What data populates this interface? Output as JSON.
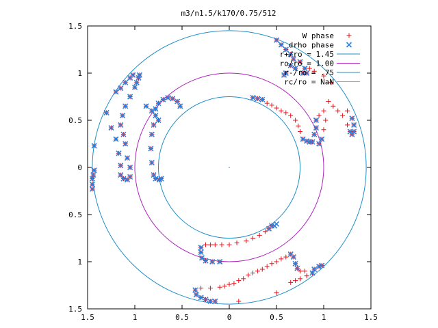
{
  "chart_data": {
    "type": "scatter",
    "title": "m3/n1.5/k170/0.75/512",
    "xlim": [
      -1.5,
      1.5
    ],
    "ylim": [
      -1.5,
      1.5
    ],
    "x_ticks": [
      {
        "value": -1.5,
        "label": "1.5"
      },
      {
        "value": -1,
        "label": "1"
      },
      {
        "value": -0.5,
        "label": "0.5"
      },
      {
        "value": 0,
        "label": "0"
      },
      {
        "value": 0.5,
        "label": "0.5"
      },
      {
        "value": 1,
        "label": "1"
      },
      {
        "value": 1.5,
        "label": "1.5"
      }
    ],
    "y_ticks": [
      {
        "value": 1.5,
        "label": "1.5"
      },
      {
        "value": 1,
        "label": "1"
      },
      {
        "value": 0.5,
        "label": "0.5"
      },
      {
        "value": 0,
        "label": "0"
      },
      {
        "value": -0.5,
        "label": "0.5"
      },
      {
        "value": -1,
        "label": "1"
      },
      {
        "value": -1.5,
        "label": "1.5"
      }
    ],
    "legend_position": "top-right",
    "grid": false,
    "circles": [
      {
        "name": "r+/ro = 1.45",
        "radius": 1.45,
        "color": "#1f8fc7"
      },
      {
        "name": "ro/ro = 1.00",
        "radius": 1.0,
        "color": "#b020c0"
      },
      {
        "name": "r-/ro = .75",
        "radius": 0.75,
        "color": "#1f8fc7"
      },
      {
        "name": "rc/ro = NaN",
        "radius": null,
        "color": "#40c8d8"
      }
    ],
    "series": [
      {
        "name": "W phase",
        "marker": "plus",
        "color": "#e8101a",
        "points": [
          [
            -1.45,
            -0.23
          ],
          [
            -1.45,
            -0.18
          ],
          [
            -1.45,
            -0.12
          ],
          [
            -1.44,
            -0.08
          ],
          [
            -1.43,
            -0.03
          ],
          [
            -1.43,
            0.23
          ],
          [
            -1.3,
            0.58
          ],
          [
            -1.2,
            0.8
          ],
          [
            -1.15,
            0.84
          ],
          [
            -1.1,
            0.9
          ],
          [
            -1.05,
            0.95
          ],
          [
            -1.02,
            0.98
          ],
          [
            -1.25,
            0.42
          ],
          [
            -1.2,
            0.3
          ],
          [
            -1.17,
            0.15
          ],
          [
            -1.15,
            0.02
          ],
          [
            -1.15,
            -0.08
          ],
          [
            -1.12,
            -0.12
          ],
          [
            -1.08,
            -0.13
          ],
          [
            -1.05,
            -0.1
          ],
          [
            -1.05,
            0.0
          ],
          [
            -1.08,
            0.1
          ],
          [
            -1.1,
            0.25
          ],
          [
            -1.12,
            0.35
          ],
          [
            -1.15,
            0.45
          ],
          [
            -1.13,
            0.55
          ],
          [
            -1.1,
            0.65
          ],
          [
            -1.05,
            0.75
          ],
          [
            -1.0,
            0.85
          ],
          [
            -0.98,
            0.9
          ],
          [
            -0.96,
            0.95
          ],
          [
            -0.95,
            0.98
          ],
          [
            -0.88,
            0.65
          ],
          [
            -0.82,
            0.6
          ],
          [
            -0.78,
            0.55
          ],
          [
            -0.75,
            0.5
          ],
          [
            -0.8,
            0.45
          ],
          [
            -0.82,
            0.35
          ],
          [
            -0.83,
            0.2
          ],
          [
            -0.82,
            0.05
          ],
          [
            -0.8,
            -0.08
          ],
          [
            -0.78,
            -0.12
          ],
          [
            -0.74,
            -0.13
          ],
          [
            -0.72,
            -0.12
          ],
          [
            -0.78,
            0.62
          ],
          [
            -0.75,
            0.68
          ],
          [
            -0.7,
            0.72
          ],
          [
            -0.65,
            0.74
          ],
          [
            -0.6,
            0.73
          ],
          [
            -0.55,
            0.7
          ],
          [
            -0.52,
            0.65
          ],
          [
            0.25,
            0.74
          ],
          [
            0.3,
            0.73
          ],
          [
            0.35,
            0.72
          ],
          [
            0.4,
            0.68
          ],
          [
            0.45,
            0.66
          ],
          [
            0.5,
            0.63
          ],
          [
            0.55,
            0.6
          ],
          [
            0.6,
            0.58
          ],
          [
            0.65,
            0.55
          ],
          [
            0.7,
            0.5
          ],
          [
            0.73,
            0.44
          ],
          [
            0.75,
            0.38
          ],
          [
            0.78,
            0.3
          ],
          [
            0.82,
            0.28
          ],
          [
            0.88,
            0.27
          ],
          [
            0.95,
            0.25
          ],
          [
            0.98,
            0.3
          ],
          [
            1.0,
            0.4
          ],
          [
            1.02,
            0.5
          ],
          [
            1.0,
            0.6
          ],
          [
            0.95,
            0.55
          ],
          [
            0.92,
            0.5
          ],
          [
            0.92,
            0.42
          ],
          [
            0.9,
            0.35
          ],
          [
            0.85,
            0.27
          ],
          [
            1.05,
            0.7
          ],
          [
            1.1,
            0.65
          ],
          [
            1.15,
            0.6
          ],
          [
            1.2,
            0.55
          ],
          [
            1.25,
            0.45
          ],
          [
            1.28,
            0.38
          ],
          [
            1.3,
            0.35
          ],
          [
            1.32,
            0.38
          ],
          [
            1.32,
            0.45
          ],
          [
            1.3,
            0.52
          ],
          [
            1.25,
            0.6
          ],
          [
            1.08,
            0.9
          ],
          [
            1.0,
            0.97
          ],
          [
            0.9,
            1.02
          ],
          [
            0.85,
            1.05
          ],
          [
            0.5,
            1.35
          ],
          [
            0.55,
            1.3
          ],
          [
            0.6,
            1.25
          ],
          [
            0.65,
            1.2
          ],
          [
            0.68,
            1.15
          ],
          [
            0.75,
            1.12
          ],
          [
            0.8,
            1.05
          ],
          [
            0.82,
            1.0
          ],
          [
            0.78,
            1.0
          ],
          [
            0.7,
            1.05
          ],
          [
            0.65,
            1.08
          ],
          [
            0.6,
            1.0
          ],
          [
            0.58,
            0.98
          ],
          [
            0.45,
            -0.62
          ],
          [
            0.42,
            -0.65
          ],
          [
            0.38,
            -0.68
          ],
          [
            0.32,
            -0.72
          ],
          [
            0.25,
            -0.75
          ],
          [
            0.18,
            -0.78
          ],
          [
            0.08,
            -0.8
          ],
          [
            0.0,
            -0.82
          ],
          [
            -0.08,
            -0.82
          ],
          [
            -0.15,
            -0.82
          ],
          [
            -0.2,
            -0.82
          ],
          [
            -0.25,
            -0.82
          ],
          [
            -0.3,
            -0.85
          ],
          [
            -0.3,
            -0.9
          ],
          [
            -0.29,
            -0.96
          ],
          [
            -0.25,
            -0.99
          ],
          [
            -0.18,
            -1.0
          ],
          [
            -0.1,
            -1.0
          ],
          [
            0.8,
            -1.1
          ],
          [
            0.75,
            -1.1
          ],
          [
            0.72,
            -1.07
          ],
          [
            0.7,
            -1.02
          ],
          [
            0.68,
            -0.95
          ],
          [
            0.65,
            -0.92
          ],
          [
            0.6,
            -0.95
          ],
          [
            0.55,
            -0.97
          ],
          [
            0.5,
            -1.0
          ],
          [
            0.45,
            -1.02
          ],
          [
            0.4,
            -1.05
          ],
          [
            0.35,
            -1.08
          ],
          [
            0.3,
            -1.1
          ],
          [
            0.25,
            -1.12
          ],
          [
            0.2,
            -1.14
          ],
          [
            0.15,
            -1.18
          ],
          [
            0.1,
            -1.2
          ],
          [
            0.05,
            -1.23
          ],
          [
            0.0,
            -1.24
          ],
          [
            -0.05,
            -1.26
          ],
          [
            -0.1,
            -1.27
          ],
          [
            -0.2,
            -1.28
          ],
          [
            -0.3,
            -1.28
          ],
          [
            -0.36,
            -1.3
          ],
          [
            -0.35,
            -1.35
          ],
          [
            -0.3,
            -1.38
          ],
          [
            -0.25,
            -1.4
          ],
          [
            -0.2,
            -1.42
          ],
          [
            -0.15,
            -1.42
          ],
          [
            0.9,
            -1.08
          ],
          [
            0.95,
            -1.05
          ],
          [
            0.98,
            -1.04
          ],
          [
            0.88,
            -1.12
          ],
          [
            0.82,
            -1.15
          ],
          [
            0.75,
            -1.18
          ],
          [
            0.7,
            -1.2
          ],
          [
            0.65,
            -1.22
          ],
          [
            0.5,
            -1.33
          ],
          [
            0.1,
            -1.42
          ]
        ]
      },
      {
        "name": "drho phase",
        "marker": "cross",
        "color": "#2a7fe0",
        "points": [
          [
            -1.45,
            -0.23
          ],
          [
            -1.45,
            -0.18
          ],
          [
            -1.45,
            -0.12
          ],
          [
            -1.44,
            -0.08
          ],
          [
            -1.43,
            -0.03
          ],
          [
            -1.43,
            0.23
          ],
          [
            -1.3,
            0.58
          ],
          [
            -1.2,
            0.8
          ],
          [
            -1.15,
            0.84
          ],
          [
            -1.1,
            0.9
          ],
          [
            -1.05,
            0.95
          ],
          [
            -1.02,
            0.98
          ],
          [
            -1.25,
            0.42
          ],
          [
            -1.2,
            0.3
          ],
          [
            -1.17,
            0.15
          ],
          [
            -1.15,
            0.02
          ],
          [
            -1.15,
            -0.08
          ],
          [
            -1.12,
            -0.12
          ],
          [
            -1.08,
            -0.13
          ],
          [
            -1.05,
            -0.1
          ],
          [
            -1.05,
            0.0
          ],
          [
            -1.08,
            0.1
          ],
          [
            -1.1,
            0.25
          ],
          [
            -1.12,
            0.35
          ],
          [
            -1.15,
            0.45
          ],
          [
            -1.13,
            0.55
          ],
          [
            -1.1,
            0.65
          ],
          [
            -1.05,
            0.75
          ],
          [
            -1.0,
            0.85
          ],
          [
            -0.98,
            0.9
          ],
          [
            -0.96,
            0.95
          ],
          [
            -0.95,
            0.98
          ],
          [
            -0.88,
            0.65
          ],
          [
            -0.82,
            0.6
          ],
          [
            -0.78,
            0.55
          ],
          [
            -0.75,
            0.5
          ],
          [
            -0.8,
            0.45
          ],
          [
            -0.82,
            0.35
          ],
          [
            -0.83,
            0.2
          ],
          [
            -0.82,
            0.05
          ],
          [
            -0.8,
            -0.08
          ],
          [
            -0.78,
            -0.12
          ],
          [
            -0.74,
            -0.13
          ],
          [
            -0.72,
            -0.12
          ],
          [
            -0.78,
            0.62
          ],
          [
            -0.75,
            0.68
          ],
          [
            -0.7,
            0.72
          ],
          [
            -0.65,
            0.74
          ],
          [
            -0.6,
            0.73
          ],
          [
            -0.55,
            0.7
          ],
          [
            -0.52,
            0.65
          ],
          [
            0.25,
            0.74
          ],
          [
            0.3,
            0.73
          ],
          [
            0.35,
            0.72
          ],
          [
            0.78,
            0.3
          ],
          [
            0.82,
            0.28
          ],
          [
            0.88,
            0.27
          ],
          [
            0.95,
            0.25
          ],
          [
            0.98,
            0.3
          ],
          [
            0.92,
            0.5
          ],
          [
            0.92,
            0.42
          ],
          [
            0.9,
            0.35
          ],
          [
            0.85,
            0.27
          ],
          [
            1.28,
            0.38
          ],
          [
            1.3,
            0.35
          ],
          [
            1.32,
            0.38
          ],
          [
            1.32,
            0.45
          ],
          [
            1.3,
            0.52
          ],
          [
            0.5,
            1.35
          ],
          [
            0.55,
            1.3
          ],
          [
            0.6,
            1.25
          ],
          [
            0.65,
            1.2
          ],
          [
            0.68,
            1.15
          ],
          [
            0.75,
            1.12
          ],
          [
            0.8,
            1.05
          ],
          [
            0.82,
            1.0
          ],
          [
            0.78,
            1.0
          ],
          [
            0.7,
            1.05
          ],
          [
            0.65,
            1.08
          ],
          [
            0.6,
            1.0
          ],
          [
            0.58,
            0.98
          ],
          [
            0.5,
            -0.6
          ],
          [
            0.48,
            -0.62
          ],
          [
            0.45,
            -0.62
          ],
          [
            0.42,
            -0.65
          ],
          [
            -0.3,
            -0.85
          ],
          [
            -0.3,
            -0.9
          ],
          [
            -0.29,
            -0.96
          ],
          [
            -0.25,
            -0.99
          ],
          [
            -0.18,
            -1.0
          ],
          [
            -0.1,
            -1.0
          ],
          [
            0.72,
            -1.07
          ],
          [
            0.7,
            -1.02
          ],
          [
            0.68,
            -0.95
          ],
          [
            0.65,
            -0.92
          ],
          [
            -0.36,
            -1.3
          ],
          [
            -0.35,
            -1.35
          ],
          [
            -0.3,
            -1.38
          ],
          [
            -0.25,
            -1.4
          ],
          [
            -0.2,
            -1.42
          ],
          [
            -0.15,
            -1.42
          ],
          [
            0.9,
            -1.08
          ],
          [
            0.95,
            -1.05
          ],
          [
            0.98,
            -1.04
          ],
          [
            0.88,
            -1.12
          ]
        ]
      }
    ]
  }
}
